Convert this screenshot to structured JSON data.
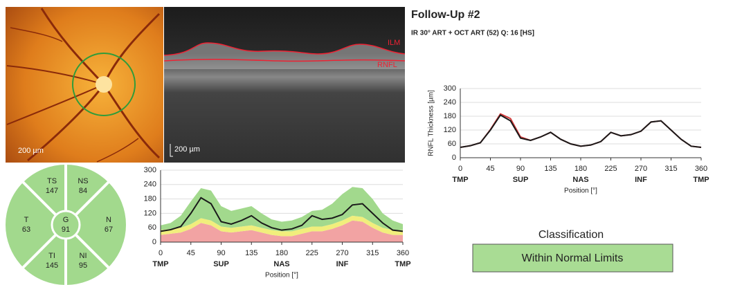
{
  "header": {
    "title": "Follow-Up #2",
    "subtitle": "IR 30° ART + OCT ART (52) Q: 16 [HS]"
  },
  "fundus_image": {
    "scale_label": "200 µm"
  },
  "oct_scan": {
    "layer_labels": [
      "ILM",
      "RNFL"
    ],
    "scale_label": "200 µm"
  },
  "sectors": [
    {
      "label": "TS",
      "value": 147
    },
    {
      "label": "NS",
      "value": 84
    },
    {
      "label": "T",
      "value": 63
    },
    {
      "label": "G",
      "value": 91
    },
    {
      "label": "N",
      "value": 67
    },
    {
      "label": "TI",
      "value": 145
    },
    {
      "label": "NI",
      "value": 95
    }
  ],
  "chart_data": [
    {
      "type": "line",
      "x": [
        0,
        15,
        30,
        45,
        60,
        75,
        90,
        105,
        120,
        135,
        150,
        165,
        180,
        195,
        210,
        225,
        240,
        255,
        270,
        285,
        300,
        315,
        330,
        345,
        360
      ],
      "xlim": [
        0,
        360
      ],
      "xticks": [
        0,
        45,
        90,
        135,
        180,
        225,
        270,
        315,
        360
      ],
      "xtick_sublabels": [
        {
          "value": 0,
          "label": "TMP"
        },
        {
          "value": 90,
          "label": "SUP"
        },
        {
          "value": 180,
          "label": "NAS"
        },
        {
          "value": 270,
          "label": "INF"
        },
        {
          "value": 360,
          "label": "TMP"
        }
      ],
      "x_label": "Position [°]",
      "ylim": [
        0,
        300
      ],
      "yticks": [
        0,
        60,
        120,
        180,
        240,
        300
      ],
      "grid": true,
      "series": [
        {
          "color": "#f2a3a3",
          "stack": true,
          "values": [
            30,
            35,
            40,
            55,
            80,
            70,
            45,
            40,
            45,
            50,
            40,
            30,
            25,
            25,
            35,
            45,
            45,
            55,
            70,
            90,
            85,
            60,
            40,
            30,
            30
          ]
        },
        {
          "color": "#f1ee7c",
          "stack": true,
          "values": [
            20,
            20,
            20,
            20,
            20,
            20,
            20,
            20,
            20,
            20,
            20,
            20,
            20,
            20,
            20,
            20,
            20,
            20,
            20,
            20,
            20,
            20,
            20,
            20,
            20
          ]
        },
        {
          "color": "#a2d98d",
          "stack": true,
          "values": [
            20,
            25,
            50,
            95,
            125,
            125,
            85,
            70,
            75,
            80,
            60,
            45,
            40,
            45,
            50,
            65,
            70,
            85,
            110,
            120,
            120,
            100,
            60,
            40,
            25
          ]
        },
        {
          "color": "#1a1a1a",
          "values": [
            45,
            52,
            65,
            120,
            185,
            160,
            85,
            75,
            90,
            110,
            80,
            60,
            50,
            55,
            70,
            110,
            95,
            100,
            115,
            155,
            160,
            120,
            80,
            50,
            45
          ]
        }
      ]
    },
    {
      "type": "line",
      "x": [
        0,
        15,
        30,
        45,
        60,
        75,
        90,
        105,
        120,
        135,
        150,
        165,
        180,
        195,
        210,
        225,
        240,
        255,
        270,
        285,
        300,
        315,
        330,
        345,
        360
      ],
      "xlim": [
        0,
        360
      ],
      "xticks": [
        0,
        45,
        90,
        135,
        180,
        225,
        270,
        315,
        360
      ],
      "xtick_sublabels": [
        {
          "value": 0,
          "label": "TMP"
        },
        {
          "value": 90,
          "label": "SUP"
        },
        {
          "value": 180,
          "label": "NAS"
        },
        {
          "value": 270,
          "label": "INF"
        },
        {
          "value": 360,
          "label": "TMP"
        }
      ],
      "x_label": "Position [°]",
      "y_label": "RNFL Thickness [µm]",
      "ylim": [
        0,
        300
      ],
      "yticks": [
        0,
        60,
        120,
        180,
        240,
        300
      ],
      "grid": true,
      "series": [
        {
          "color": "#d43a3a",
          "values": [
            45,
            52,
            65,
            122,
            190,
            170,
            90,
            75,
            90,
            110,
            80,
            60,
            50,
            55,
            70,
            110,
            95,
            100,
            115,
            155,
            160,
            120,
            80,
            50,
            45
          ]
        },
        {
          "color": "#1a1a1a",
          "values": [
            45,
            52,
            65,
            120,
            185,
            160,
            85,
            75,
            90,
            110,
            80,
            60,
            50,
            55,
            70,
            110,
            95,
            100,
            115,
            155,
            160,
            120,
            80,
            50,
            45
          ]
        }
      ]
    }
  ],
  "classification": {
    "title": "Classification",
    "result": "Within Normal Limits"
  }
}
